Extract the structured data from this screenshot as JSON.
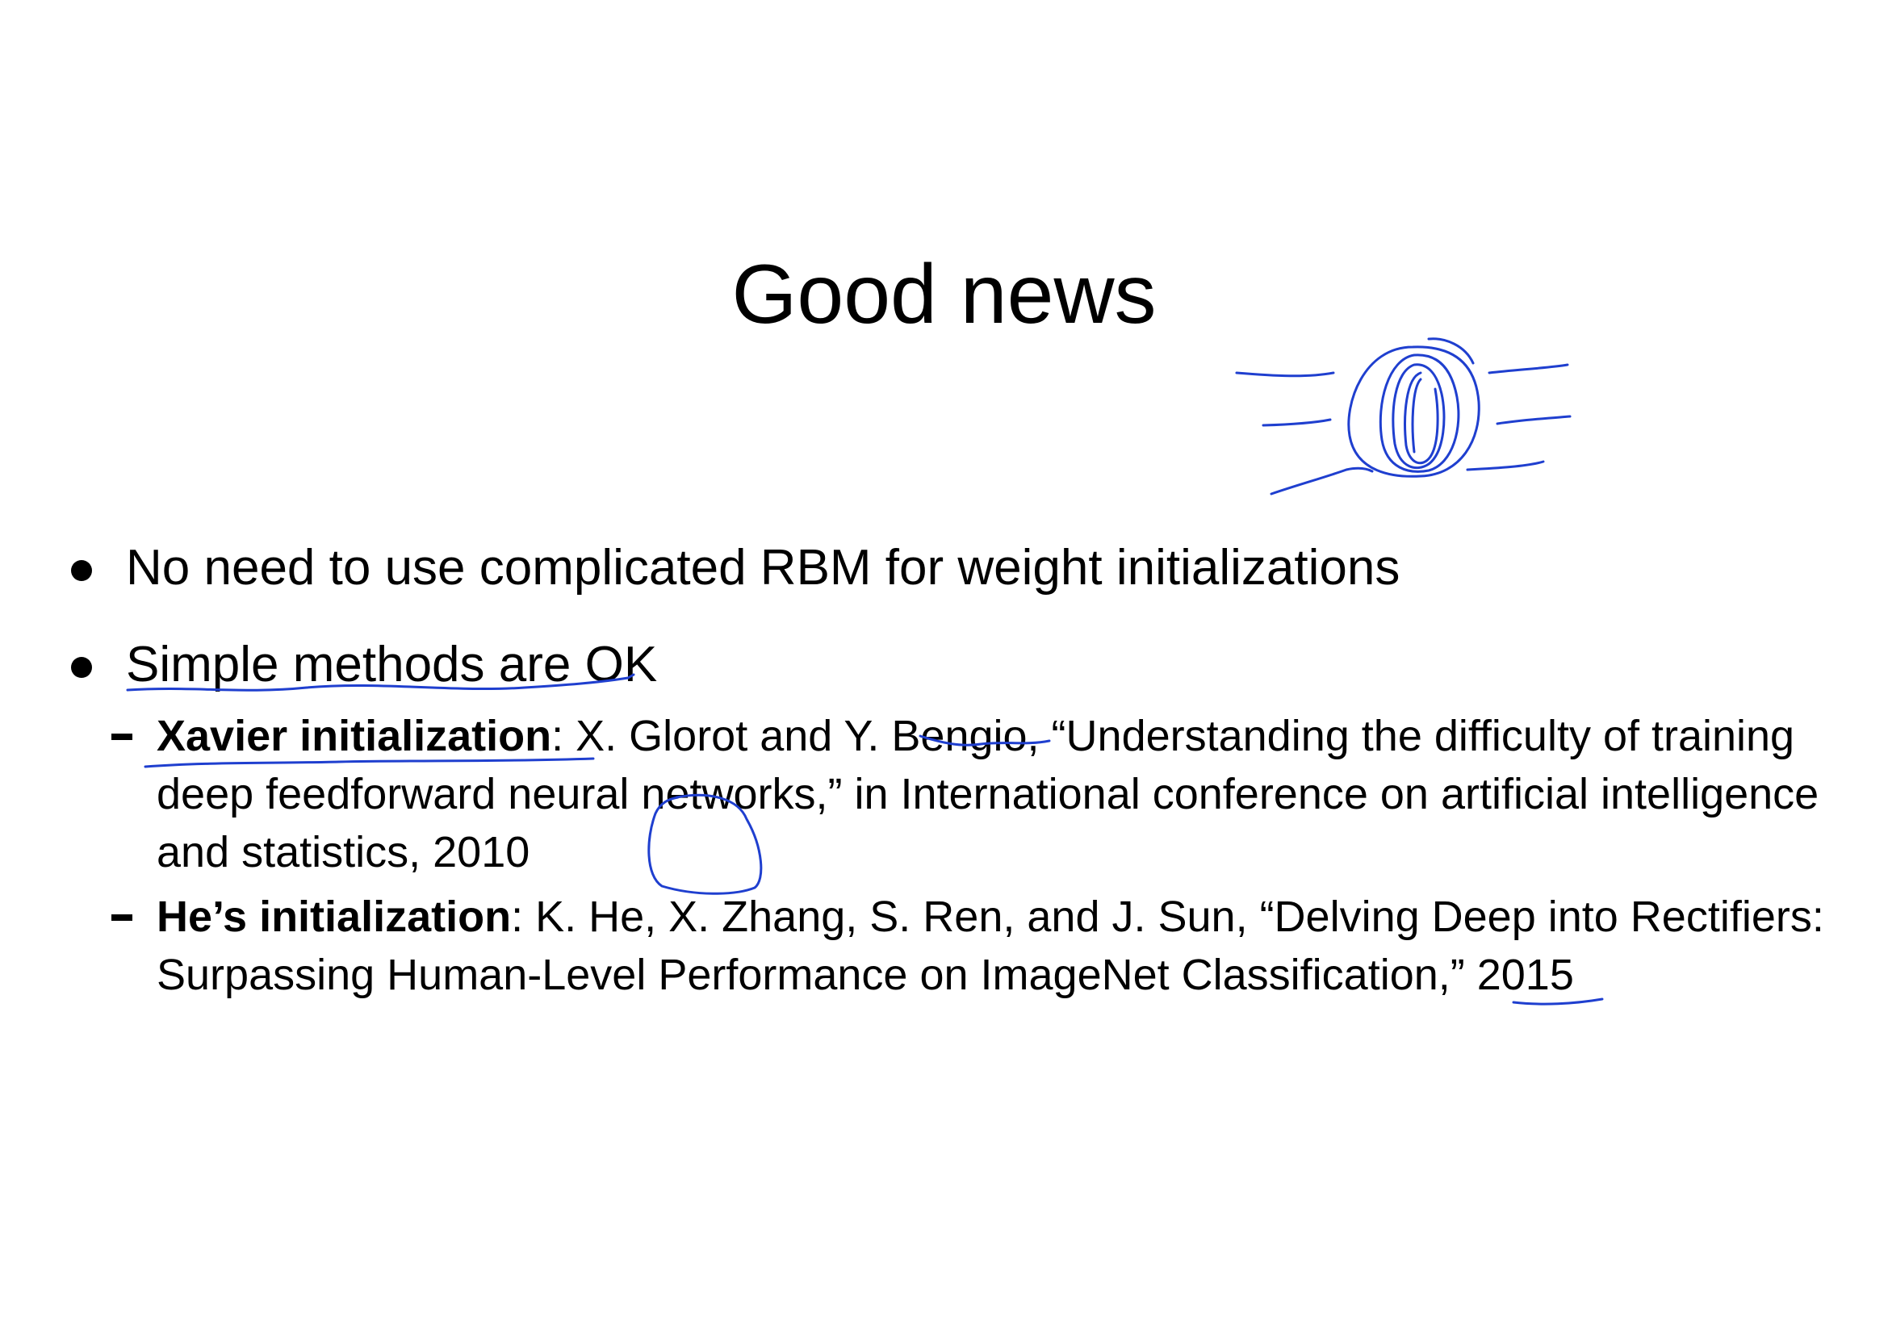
{
  "slide": {
    "title": "Good news",
    "bullets": [
      {
        "text": "No need to use complicated RBM for weight initializations"
      },
      {
        "text": "Simple methods are OK"
      }
    ],
    "subitems": [
      {
        "term": "Xavier initialization",
        "citation": ": X. Glorot and Y. Bengio, “Understanding the difficulty of training deep feedforward neural networks,” in International conference on artificial intelligence and statistics, 2010"
      },
      {
        "term": "He’s initialization",
        "citation": ": K. He, X. Zhang, S. Ren, and J. Sun, “Delving Deep into Rectifiers: Surpassing Human-Level Performance on ImageNet Classification,” 2015"
      }
    ]
  },
  "annotation": {
    "ink_color": "#1f3fcf"
  }
}
